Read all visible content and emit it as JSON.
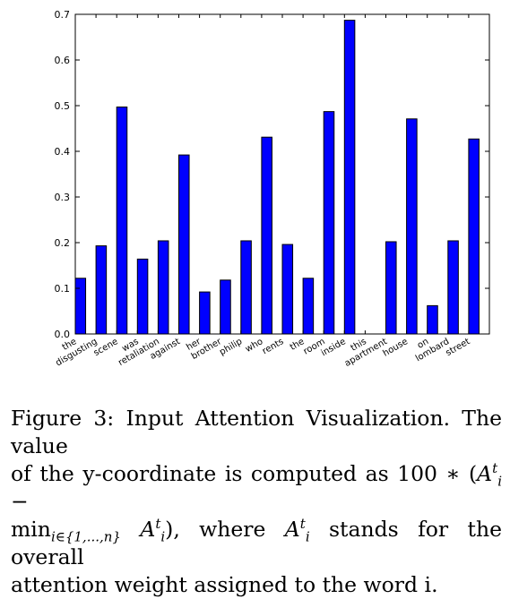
{
  "chart_data": {
    "type": "bar",
    "categories": [
      "the",
      "disgusting",
      "scene",
      "was",
      "retaliation",
      "against",
      "her",
      "brother",
      "philip",
      "who",
      "rents",
      "the",
      "room",
      "inside",
      "this",
      "apartment",
      "house",
      "on",
      "lombard",
      "street"
    ],
    "values": [
      0.122,
      0.193,
      0.497,
      0.164,
      0.204,
      0.392,
      0.092,
      0.118,
      0.204,
      0.431,
      0.196,
      0.122,
      0.487,
      0.687,
      0.0,
      0.202,
      0.471,
      0.062,
      0.204,
      0.427
    ],
    "yticks": [
      "0.0",
      "0.1",
      "0.2",
      "0.3",
      "0.4",
      "0.5",
      "0.6",
      "0.7"
    ],
    "ylim": [
      0,
      0.7
    ],
    "bar_color": "#0000ff",
    "grid": false,
    "title": "",
    "xlabel": "",
    "ylabel": ""
  },
  "caption": {
    "line1": "Figure 3: Input Attention Visualization. The value",
    "line2_a": "of the y-coordinate is computed as 100 ∗ (",
    "line2_sym": "A",
    "line2_sup": "t",
    "line2_sub": "i",
    "line2_b": " −",
    "line3_min": "min",
    "line3_minsub": "i∈{1,...,n}",
    "line3_sym": " A",
    "line3_sup": "t",
    "line3_sub": "i",
    "line3_b": "), where ",
    "line3_sym2": "A",
    "line3_sup2": "t",
    "line3_sub2": "i",
    "line3_c": " stands for the overall",
    "line4": "attention weight assigned to the word i."
  }
}
